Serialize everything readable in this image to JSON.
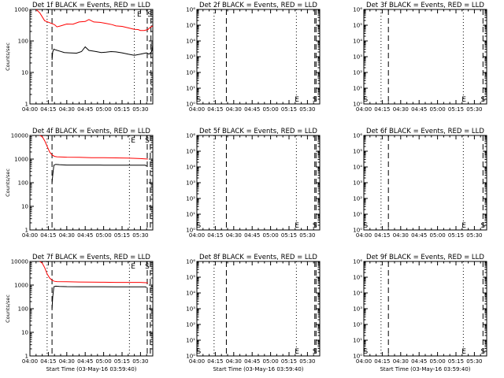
{
  "colors": {
    "events": "#000000",
    "lld": "#ff0000",
    "background": "#ffffff"
  },
  "chart_data": [
    {
      "type": "line",
      "title": "Det 1f BLACK = Events, RED = LLD",
      "xlabel": "",
      "ylabel": "Counts/sec",
      "yscale": "log",
      "ylim": [
        1,
        1000
      ],
      "ytick_labels": [
        "1",
        "10",
        "100",
        "1000"
      ],
      "xtick_labels": [
        "04:00",
        "04:15",
        "04:30",
        "04:45",
        "05:00",
        "05:15",
        "05:30"
      ],
      "xlim_minutes": [
        0,
        100
      ],
      "series": [
        {
          "color": "#ff0000",
          "x": [
            5,
            8,
            12,
            16,
            20,
            22,
            25,
            30,
            35,
            40,
            45,
            48,
            52,
            57,
            62,
            67,
            70,
            75,
            80,
            85,
            88,
            90,
            93,
            96,
            98,
            100
          ],
          "y": [
            1000,
            780,
            440,
            380,
            330,
            280,
            300,
            345,
            340,
            400,
            415,
            480,
            400,
            390,
            360,
            330,
            300,
            290,
            260,
            235,
            230,
            215,
            215,
            230,
            270,
            300
          ]
        },
        {
          "color": "#000000",
          "x": [
            18,
            18.5,
            19.5,
            21,
            24,
            28,
            32,
            38,
            42,
            45,
            48,
            51,
            54,
            58,
            62,
            66,
            70,
            75,
            80,
            85,
            90,
            95,
            97,
            99,
            100
          ],
          "y": [
            25,
            45,
            55,
            52,
            48,
            43,
            42,
            41,
            46,
            65,
            50,
            48,
            46,
            43,
            44,
            46,
            45,
            42,
            38,
            35,
            38,
            42,
            38,
            45,
            70
          ]
        }
      ],
      "vlines": [
        {
          "x": 14,
          "style": "dotted"
        },
        {
          "x": 18,
          "style": "dashed"
        },
        {
          "x": 85,
          "style": "dotted"
        },
        {
          "x": 95.5,
          "style": "dashed"
        },
        {
          "x": 98.5,
          "style": "dashed"
        }
      ],
      "markers": [
        {
          "label": "E",
          "x": 89,
          "pos": "top"
        },
        {
          "label": "S",
          "x": 97.5,
          "pos": "top"
        }
      ]
    },
    {
      "type": "line",
      "title": "Det 2f BLACK = Events, RED = LLD",
      "xlabel": "",
      "ylabel": "",
      "yscale": "log",
      "ylim": [
        1,
        1000000
      ],
      "ytick_labels": [
        "10⁰",
        "10¹",
        "10²",
        "10³",
        "10⁴",
        "10⁵",
        "10⁶"
      ],
      "xtick_labels": [
        "04:00",
        "04:15",
        "04:30",
        "04:45",
        "05:00",
        "05:15",
        "05:30"
      ],
      "xlim_minutes": [
        0,
        100
      ],
      "series": [],
      "vlines": [
        {
          "x": 14,
          "style": "dotted"
        },
        {
          "x": 24,
          "style": "dashed"
        },
        {
          "x": 81,
          "style": "dotted"
        },
        {
          "x": 96,
          "style": "dashed"
        },
        {
          "x": 97,
          "style": "dashed"
        }
      ],
      "markers": [
        {
          "label": "S",
          "x": 1.5,
          "pos": "bottom"
        },
        {
          "label": "E",
          "x": 81.5,
          "pos": "bottom"
        },
        {
          "label": "S",
          "x": 96,
          "pos": "bottom"
        }
      ]
    },
    {
      "type": "line",
      "title": "Det 3f BLACK = Events, RED = LLD",
      "xlabel": "",
      "ylabel": "",
      "yscale": "log",
      "ylim": [
        1,
        1000000
      ],
      "ytick_labels": [
        "10⁰",
        "10¹",
        "10²",
        "10³",
        "10⁴",
        "10⁵",
        "10⁶"
      ],
      "xtick_labels": [
        "04:00",
        "04:15",
        "04:30",
        "04:45",
        "05:00",
        "05:15",
        "05:30"
      ],
      "xlim_minutes": [
        0,
        100
      ],
      "series": [],
      "vlines": [
        {
          "x": 14,
          "style": "dotted"
        },
        {
          "x": 20,
          "style": "dashed"
        },
        {
          "x": 81,
          "style": "dotted"
        },
        {
          "x": 97,
          "style": "dashed"
        }
      ],
      "markers": [
        {
          "label": "S",
          "x": 1.5,
          "pos": "bottom"
        },
        {
          "label": "E",
          "x": 81.5,
          "pos": "bottom"
        },
        {
          "label": "S",
          "x": 97,
          "pos": "bottom"
        }
      ]
    },
    {
      "type": "line",
      "title": "Det 4f BLACK = Events, RED = LLD",
      "xlabel": "",
      "ylabel": "Counts/sec",
      "yscale": "log",
      "ylim": [
        1,
        10000
      ],
      "ytick_labels": [
        "1",
        "10",
        "100",
        "1000",
        "10000"
      ],
      "xtick_labels": [
        "04:00",
        "04:15",
        "04:30",
        "04:45",
        "05:00",
        "05:15",
        "05:30"
      ],
      "xlim_minutes": [
        0,
        100
      ],
      "series": [
        {
          "color": "#ff0000",
          "x": [
            8,
            10,
            12,
            14,
            16,
            18,
            20,
            22,
            30,
            40,
            50,
            60,
            70,
            80,
            90,
            96
          ],
          "y": [
            10000,
            9000,
            6000,
            3500,
            2000,
            1500,
            1300,
            1250,
            1200,
            1180,
            1150,
            1150,
            1120,
            1100,
            1050,
            1000
          ]
        },
        {
          "color": "#000000",
          "x": [
            18,
            18.5,
            19.5,
            21,
            24,
            30,
            40,
            50,
            60,
            70,
            80,
            90,
            94,
            95
          ],
          "y": [
            100,
            200,
            550,
            600,
            580,
            560,
            560,
            560,
            555,
            555,
            550,
            550,
            550,
            500
          ]
        }
      ],
      "vlines": [
        {
          "x": 14,
          "style": "dotted"
        },
        {
          "x": 18,
          "style": "dashed"
        },
        {
          "x": 81,
          "style": "dotted"
        },
        {
          "x": 95.5,
          "style": "dashed"
        },
        {
          "x": 98,
          "style": "dashed"
        }
      ],
      "markers": [
        {
          "label": "E",
          "x": 84,
          "pos": "top"
        },
        {
          "label": "S",
          "x": 95.5,
          "pos": "top"
        }
      ]
    },
    {
      "type": "line",
      "title": "Det 5f BLACK = Events, RED = LLD",
      "xlabel": "",
      "ylabel": "",
      "yscale": "log",
      "ylim": [
        1,
        1000000
      ],
      "ytick_labels": [
        "10⁰",
        "10¹",
        "10²",
        "10³",
        "10⁴",
        "10⁵",
        "10⁶"
      ],
      "xtick_labels": [
        "04:00",
        "04:15",
        "04:30",
        "04:45",
        "05:00",
        "05:15",
        "05:30"
      ],
      "xlim_minutes": [
        0,
        100
      ],
      "series": [],
      "vlines": [
        {
          "x": 14,
          "style": "dotted"
        },
        {
          "x": 24,
          "style": "dashed"
        },
        {
          "x": 81,
          "style": "dotted"
        },
        {
          "x": 96,
          "style": "dashed"
        },
        {
          "x": 97,
          "style": "dashed"
        }
      ],
      "markers": [
        {
          "label": "S",
          "x": 1.5,
          "pos": "bottom"
        },
        {
          "label": "E",
          "x": 81.5,
          "pos": "bottom"
        },
        {
          "label": "S",
          "x": 96,
          "pos": "bottom"
        }
      ]
    },
    {
      "type": "line",
      "title": "Det 6f BLACK = Events, RED = LLD",
      "xlabel": "",
      "ylabel": "",
      "yscale": "log",
      "ylim": [
        1,
        1000000
      ],
      "ytick_labels": [
        "10⁰",
        "10¹",
        "10²",
        "10³",
        "10⁴",
        "10⁵",
        "10⁶"
      ],
      "xtick_labels": [
        "04:00",
        "04:15",
        "04:30",
        "04:45",
        "05:00",
        "05:15",
        "05:30"
      ],
      "xlim_minutes": [
        0,
        100
      ],
      "series": [],
      "vlines": [
        {
          "x": 14,
          "style": "dotted"
        },
        {
          "x": 20,
          "style": "dashed"
        },
        {
          "x": 81,
          "style": "dotted"
        },
        {
          "x": 97,
          "style": "dashed"
        }
      ],
      "markers": [
        {
          "label": "S",
          "x": 1.5,
          "pos": "bottom"
        },
        {
          "label": "E",
          "x": 81.5,
          "pos": "bottom"
        },
        {
          "label": "S",
          "x": 97,
          "pos": "bottom"
        }
      ]
    },
    {
      "type": "line",
      "title": "Det 7f BLACK = Events, RED = LLD",
      "xlabel": "Start Time (03-May-16 03:59:40)",
      "ylabel": "Counts/sec",
      "yscale": "log",
      "ylim": [
        1,
        10000
      ],
      "ytick_labels": [
        "1",
        "10",
        "100",
        "1000",
        "10000"
      ],
      "xtick_labels": [
        "04:00",
        "04:15",
        "04:30",
        "04:45",
        "05:00",
        "05:15",
        "05:30"
      ],
      "xlim_minutes": [
        0,
        100
      ],
      "series": [
        {
          "color": "#ff0000",
          "x": [
            8,
            10,
            12,
            14,
            16,
            18,
            20,
            22,
            30,
            40,
            50,
            60,
            70,
            80,
            90,
            96
          ],
          "y": [
            10000,
            8500,
            5500,
            3000,
            2000,
            1600,
            1450,
            1400,
            1380,
            1350,
            1330,
            1320,
            1300,
            1300,
            1300,
            1250
          ]
        },
        {
          "color": "#000000",
          "x": [
            18,
            18.5,
            19.5,
            21,
            24,
            30,
            40,
            50,
            60,
            70,
            80,
            90,
            94,
            95
          ],
          "y": [
            100,
            300,
            850,
            900,
            880,
            860,
            850,
            850,
            850,
            845,
            840,
            840,
            840,
            800
          ]
        }
      ],
      "vlines": [
        {
          "x": 14,
          "style": "dotted"
        },
        {
          "x": 18,
          "style": "dashed"
        },
        {
          "x": 81,
          "style": "dotted"
        },
        {
          "x": 95.5,
          "style": "dashed"
        },
        {
          "x": 98,
          "style": "dashed"
        }
      ],
      "markers": [
        {
          "label": "E",
          "x": 84,
          "pos": "top"
        },
        {
          "label": "S",
          "x": 95.5,
          "pos": "top"
        }
      ]
    },
    {
      "type": "line",
      "title": "Det 8f BLACK = Events, RED = LLD",
      "xlabel": "Start Time (03-May-16 03:59:40)",
      "ylabel": "",
      "yscale": "log",
      "ylim": [
        1,
        1000000
      ],
      "ytick_labels": [
        "10⁰",
        "10¹",
        "10²",
        "10³",
        "10⁴",
        "10⁵",
        "10⁶"
      ],
      "xtick_labels": [
        "04:00",
        "04:15",
        "04:30",
        "04:45",
        "05:00",
        "05:15",
        "05:30"
      ],
      "xlim_minutes": [
        0,
        100
      ],
      "series": [],
      "vlines": [
        {
          "x": 14,
          "style": "dotted"
        },
        {
          "x": 24,
          "style": "dashed"
        },
        {
          "x": 81,
          "style": "dotted"
        },
        {
          "x": 96,
          "style": "dashed"
        },
        {
          "x": 97,
          "style": "dashed"
        }
      ],
      "markers": [
        {
          "label": "S",
          "x": 1.5,
          "pos": "bottom"
        },
        {
          "label": "E",
          "x": 81.5,
          "pos": "bottom"
        },
        {
          "label": "S",
          "x": 96,
          "pos": "bottom"
        }
      ]
    },
    {
      "type": "line",
      "title": "Det 9f BLACK = Events, RED = LLD",
      "xlabel": "Start Time (03-May-16 03:59:40)",
      "ylabel": "",
      "yscale": "log",
      "ylim": [
        1,
        1000000
      ],
      "ytick_labels": [
        "10⁰",
        "10¹",
        "10²",
        "10³",
        "10⁴",
        "10⁵",
        "10⁶"
      ],
      "xtick_labels": [
        "04:00",
        "04:15",
        "04:30",
        "04:45",
        "05:00",
        "05:15",
        "05:30"
      ],
      "xlim_minutes": [
        0,
        100
      ],
      "series": [],
      "vlines": [
        {
          "x": 14,
          "style": "dotted"
        },
        {
          "x": 20,
          "style": "dashed"
        },
        {
          "x": 81,
          "style": "dotted"
        },
        {
          "x": 97,
          "style": "dashed"
        }
      ],
      "markers": [
        {
          "label": "S",
          "x": 1.5,
          "pos": "bottom"
        },
        {
          "label": "E",
          "x": 81.5,
          "pos": "bottom"
        },
        {
          "label": "S",
          "x": 97,
          "pos": "bottom"
        }
      ]
    }
  ]
}
